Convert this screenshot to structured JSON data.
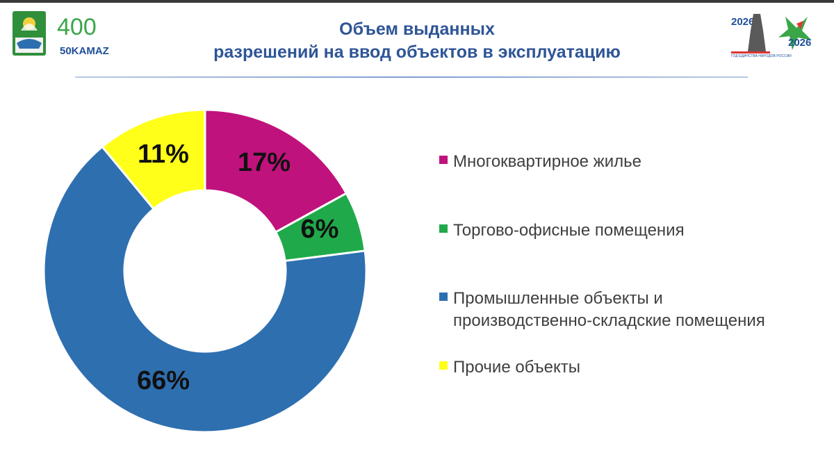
{
  "header": {
    "title_line1": "Объем выданных",
    "title_line2": "разрешений на ввод объектов в эксплуатацию",
    "logo_left_text_main": "400",
    "logo_left_text_sub": "50KAMAZ",
    "logo_right_year_left": "2026",
    "logo_right_year_right": "2026",
    "logo_right_caption": "ГОД ЕДИНСТВА НАРОДОВ РОССИИ"
  },
  "colors": {
    "title": "#2e5597",
    "magenta": "#c0127c",
    "green": "#20a94a",
    "blue": "#2e6fb0",
    "yellow": "#ffff1a"
  },
  "chart_data": {
    "type": "pie",
    "donut": true,
    "title": "",
    "legend_position": "right",
    "slices": [
      {
        "name": "Многоквартирное жилье",
        "value": 17,
        "label": "17%",
        "color": "#c0127c"
      },
      {
        "name": "Торгово-офисные помещения",
        "value": 6,
        "label": "6%",
        "color": "#20a94a"
      },
      {
        "name": "Промышленные объекты и производственно-складские помещения",
        "legend_lines": [
          "Промышленные объекты и",
          "производственно-складские помещения"
        ],
        "value": 66,
        "label": "66%",
        "color": "#2e6fb0"
      },
      {
        "name": "Прочие объекты",
        "value": 11,
        "label": "11%",
        "color": "#ffff1a"
      }
    ]
  }
}
